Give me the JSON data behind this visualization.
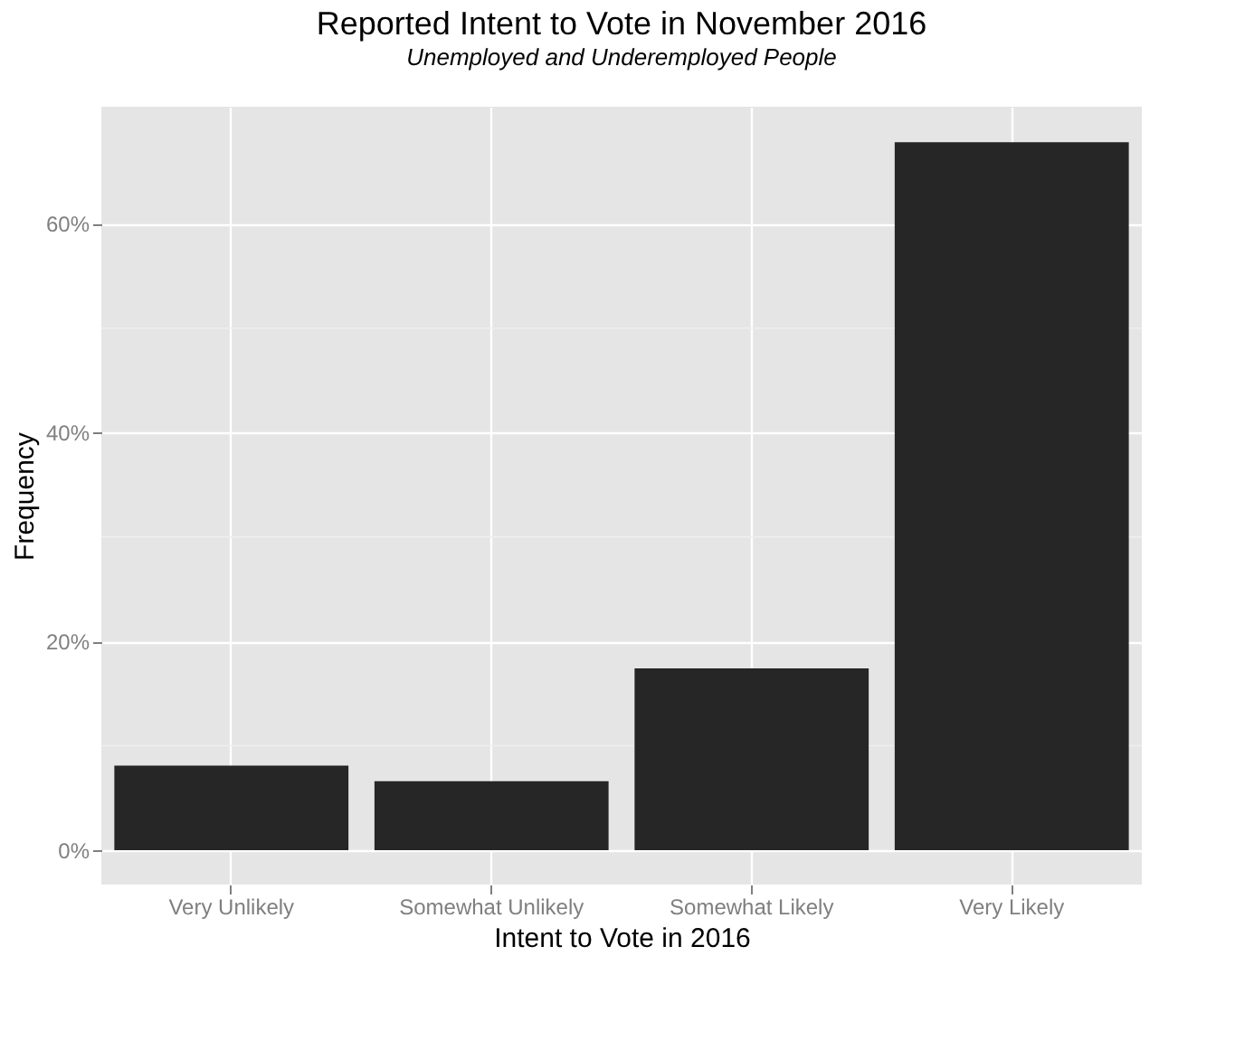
{
  "chart_data": {
    "type": "bar",
    "title": "Reported Intent to Vote in November 2016",
    "subtitle": "Unemployed and Underemployed People",
    "xlabel": "Intent to Vote in 2016",
    "ylabel": "Frequency",
    "categories": [
      "Very Unlikely",
      "Somewhat Unlikely",
      "Somewhat Likely",
      "Very Likely"
    ],
    "values": [
      8.1,
      6.6,
      17.4,
      67.8
    ],
    "color": "#262626",
    "ylim": [
      -3.3,
      71.2
    ],
    "yticks": [
      {
        "value": 0,
        "label": "0%"
      },
      {
        "value": 10,
        "label": null
      },
      {
        "value": 20,
        "label": "20%"
      },
      {
        "value": 30,
        "label": null
      },
      {
        "value": 40,
        "label": "40%"
      },
      {
        "value": 50,
        "label": null
      },
      {
        "value": 60,
        "label": "60%"
      }
    ],
    "grid": true
  }
}
